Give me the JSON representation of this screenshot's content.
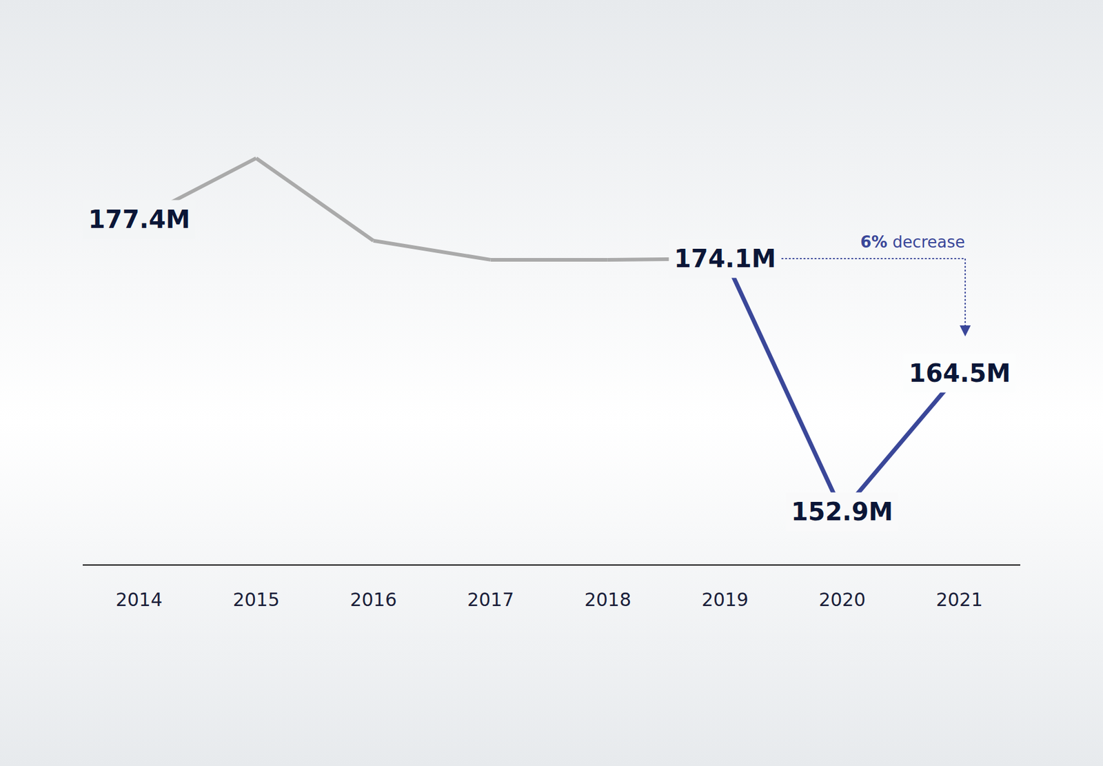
{
  "chart_data": {
    "type": "line",
    "categories": [
      "2014",
      "2015",
      "2016",
      "2017",
      "2018",
      "2019",
      "2020",
      "2021"
    ],
    "values": [
      177.4,
      182.5,
      175.6,
      174.0,
      174.0,
      174.1,
      152.9,
      164.5
    ],
    "value_labels": [
      "177.4M",
      null,
      null,
      null,
      null,
      "174.1M",
      "152.9M",
      "164.5M"
    ],
    "data_labels": true,
    "colors": [
      "#aaaaaa",
      "#aaaaaa",
      "#aaaaaa",
      "#aaaaaa",
      "#aaaaaa",
      "#aaaaaa",
      "#3a4799",
      "#3a4799"
    ],
    "ylim": [
      148.5,
      190
    ],
    "tick_labels": "x",
    "grid": false,
    "annotations": [
      {
        "text": "6% decrease",
        "from": "2019",
        "to": "2021"
      }
    ]
  }
}
